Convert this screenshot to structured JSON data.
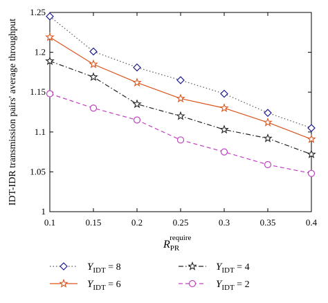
{
  "chart_data": {
    "type": "line",
    "title": "",
    "xlabel": "R",
    "xlabel_sub": "PR",
    "xlabel_sup": "require",
    "ylabel": "IDT-IDR transmission pairs' average throughput",
    "x": [
      0.1,
      0.15,
      0.2,
      0.25,
      0.3,
      0.35,
      0.4
    ],
    "x_tick_labels": [
      "0.1",
      "0.15",
      "0.2",
      "0.25",
      "0.3",
      "0.35",
      "0.4"
    ],
    "y_tick_labels": [
      "1",
      "1.05",
      "1.1",
      "1.15",
      "1.2",
      "1.25"
    ],
    "xlim": [
      0.1,
      0.4
    ],
    "ylim": [
      1.0,
      1.25
    ],
    "grid": false,
    "legend_placement": "bottom",
    "series": [
      {
        "name": "Y",
        "name_sub": "IDT",
        "name_val": " = 8",
        "values": [
          1.245,
          1.201,
          1.181,
          1.165,
          1.148,
          1.124,
          1.105
        ],
        "color": "#555555",
        "dash": "dotted",
        "marker": "diamond",
        "marker_color": "#1a1a8c"
      },
      {
        "name": "Y",
        "name_sub": "IDT",
        "name_val": " = 6",
        "values": [
          1.219,
          1.185,
          1.162,
          1.142,
          1.13,
          1.112,
          1.091
        ],
        "color": "#d95319",
        "dash": "solid",
        "marker": "star",
        "marker_color": "#d95319"
      },
      {
        "name": "Y",
        "name_sub": "IDT",
        "name_val": " = 4",
        "values": [
          1.189,
          1.169,
          1.135,
          1.12,
          1.103,
          1.092,
          1.072
        ],
        "color": "#222222",
        "dash": "dashdot",
        "marker": "star",
        "marker_color": "#222222"
      },
      {
        "name": "Y",
        "name_sub": "IDT",
        "name_val": " = 2",
        "values": [
          1.148,
          1.13,
          1.115,
          1.09,
          1.075,
          1.059,
          1.048
        ],
        "color": "#c040c0",
        "dash": "dashed",
        "marker": "circle",
        "marker_color": "#c040c0"
      }
    ]
  }
}
